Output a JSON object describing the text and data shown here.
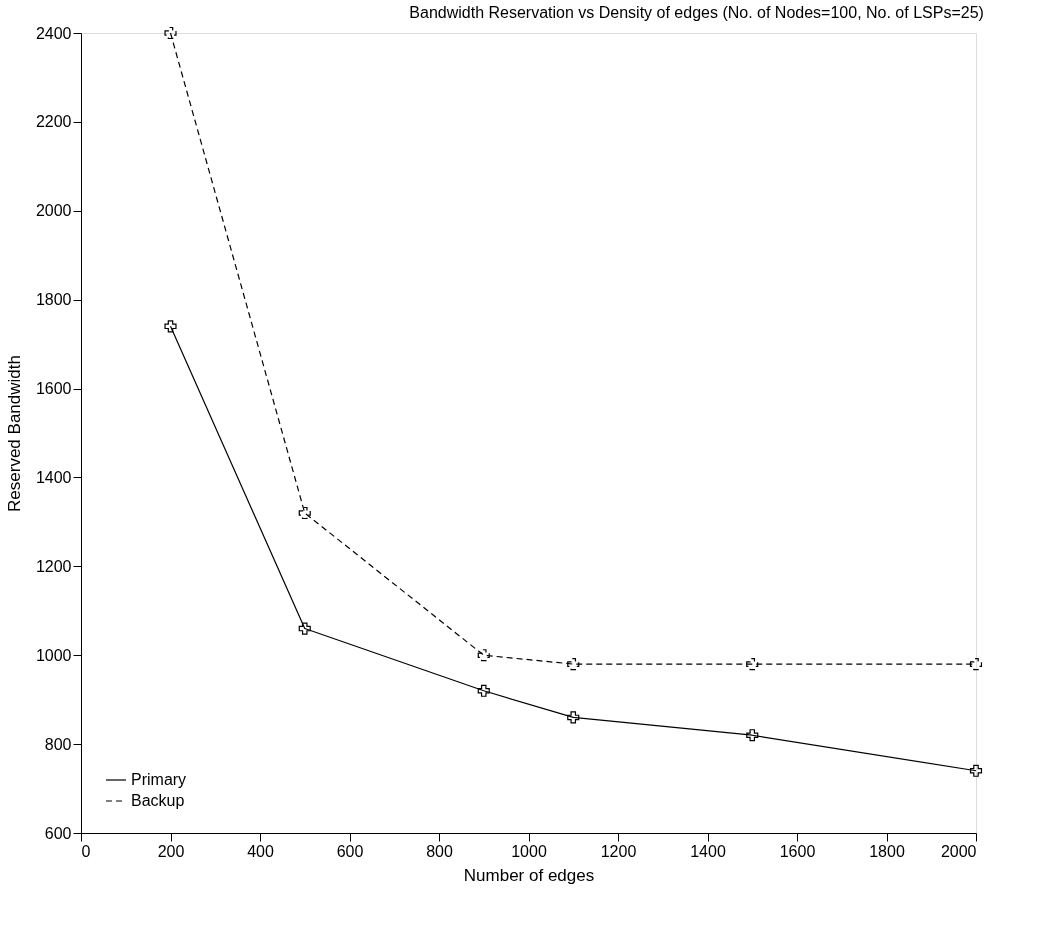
{
  "chart_data": {
    "type": "line",
    "title": "Bandwidth Reservation vs Density of edges (No. of Nodes=100, No. of LSPs=25)",
    "xlabel": "Number of edges",
    "ylabel": "Reserved Bandwidth",
    "x": [
      200,
      500,
      900,
      1100,
      1500,
      2000
    ],
    "series": [
      {
        "name": "Primary",
        "color": "#000000",
        "line_style": "solid",
        "values": [
          1740,
          1060,
          920,
          860,
          820,
          740
        ]
      },
      {
        "name": "Backup",
        "color": "#000000",
        "line_style": "dashed",
        "values": [
          2400,
          1320,
          1000,
          980,
          980,
          980
        ]
      }
    ],
    "xlim": [
      0,
      2000
    ],
    "xticks": [
      0,
      200,
      400,
      600,
      800,
      1000,
      1200,
      1400,
      1600,
      1800,
      2000
    ],
    "ylim": [
      600,
      2400
    ],
    "yticks": [
      600,
      800,
      1000,
      1200,
      1400,
      1600,
      1800,
      2000,
      2200,
      2400
    ],
    "grid": false,
    "legend": "bottom left",
    "marker": "cross"
  }
}
